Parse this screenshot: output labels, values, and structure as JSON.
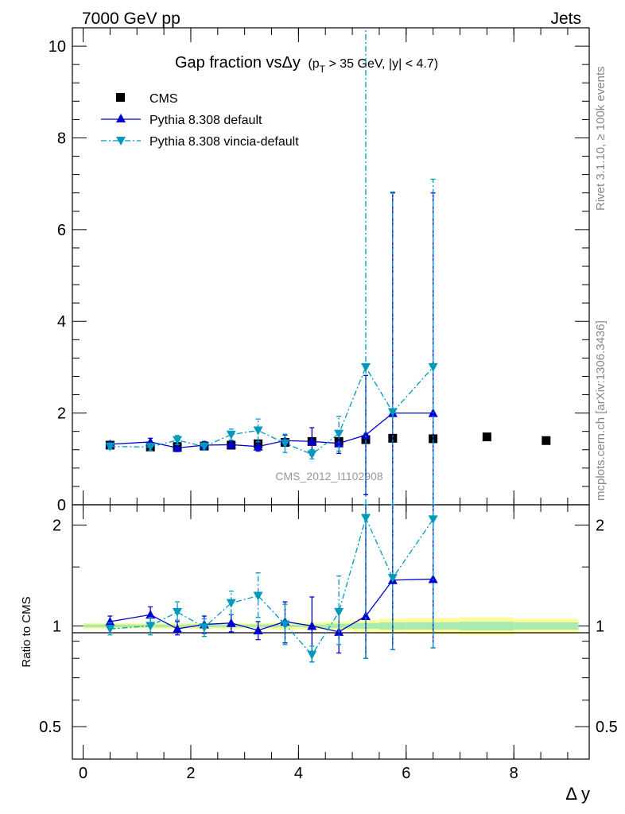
{
  "header": {
    "left": "7000 GeV pp",
    "right": "Jets"
  },
  "side": {
    "top": "Rivet 3.1.10, ≥ 100k events",
    "bottom": "mcplots.cern.ch [arXiv:1306.3436]"
  },
  "colors": {
    "cms": "#000000",
    "default": "#0000cc",
    "vincia": "#0099bb",
    "band_inner": "#a8eab0",
    "band_outer": "#ffff99",
    "ref_line": "#000000"
  },
  "chart_data": [
    {
      "type": "scatter",
      "title_main": "Gap fraction vsΔy",
      "title_sub": "(p",
      "title_sub_sub": "T",
      "title_sub_rest": " > 35 GeV, |y| < 4.7)",
      "watermark": "CMS_2012_I1102908",
      "xlim": [
        -0.2,
        9.4
      ],
      "ylim": [
        0,
        10.4
      ],
      "yticks": [
        0,
        2,
        4,
        6,
        8,
        10
      ],
      "ytick_labels": [
        "0",
        "2",
        "4",
        "6",
        "8",
        "10"
      ],
      "legend": [
        "CMS",
        "Pythia 8.308 default",
        "Pythia 8.308 vincia-default"
      ],
      "legend_position": "top-left",
      "series": [
        {
          "name": "CMS",
          "marker": "square",
          "x": [
            0.5,
            1.25,
            1.75,
            2.25,
            2.75,
            3.25,
            3.75,
            4.25,
            4.75,
            5.25,
            5.75,
            6.5,
            7.5,
            8.6
          ],
          "y": [
            1.3,
            1.26,
            1.27,
            1.28,
            1.3,
            1.33,
            1.36,
            1.38,
            1.38,
            1.42,
            1.45,
            1.44,
            1.48,
            1.4
          ]
        },
        {
          "name": "Pythia 8.308 default",
          "marker": "triangle-up",
          "x": [
            0.5,
            1.25,
            1.75,
            2.25,
            2.75,
            3.25,
            3.75,
            4.25,
            4.75,
            5.25,
            5.75,
            6.5
          ],
          "y": [
            1.32,
            1.37,
            1.24,
            1.3,
            1.31,
            1.27,
            1.4,
            1.38,
            1.34,
            1.52,
            2.0,
            2.0
          ],
          "err": [
            0.05,
            0.08,
            0.08,
            0.08,
            0.08,
            0.1,
            0.12,
            0.3,
            0.22,
            1.3,
            4.8,
            4.8
          ]
        },
        {
          "name": "Pythia 8.308 vincia-default",
          "marker": "triangle-down",
          "x": [
            0.5,
            1.25,
            1.75,
            2.25,
            2.75,
            3.25,
            3.75,
            4.25,
            4.75,
            5.25,
            5.75,
            6.5
          ],
          "y": [
            1.27,
            1.26,
            1.41,
            1.27,
            1.53,
            1.62,
            1.34,
            1.1,
            1.55,
            3.0,
            2.02,
            3.0
          ],
          "err": [
            0.05,
            0.08,
            0.1,
            0.08,
            0.12,
            0.25,
            0.2,
            0.1,
            0.38,
            8.0,
            4.8,
            4.1
          ]
        }
      ]
    },
    {
      "type": "scatter",
      "xlabel": "Δ y",
      "ylabel": "Ratio to CMS",
      "xlim": [
        -0.2,
        9.4
      ],
      "ylim": [
        0.4,
        2.3
      ],
      "xticks": [
        0,
        2,
        4,
        6,
        8
      ],
      "xtick_labels": [
        "0",
        "2",
        "4",
        "6",
        "8"
      ],
      "yticks": [
        0.5,
        1,
        2
      ],
      "ytick_labels": [
        "0.5",
        "1",
        "2"
      ],
      "band": {
        "x_edges": [
          0,
          1,
          1.5,
          2,
          2.5,
          3,
          3.5,
          4,
          4.5,
          5,
          5.5,
          6,
          7,
          8,
          9.2
        ],
        "inner": [
          0.01,
          0.01,
          0.01,
          0.01,
          0.01,
          0.01,
          0.01,
          0.01,
          0.015,
          0.02,
          0.025,
          0.025,
          0.03,
          0.025
        ],
        "outer": [
          0.02,
          0.02,
          0.02,
          0.02,
          0.02,
          0.02,
          0.025,
          0.025,
          0.03,
          0.04,
          0.05,
          0.055,
          0.06,
          0.05
        ]
      },
      "series": [
        {
          "name": "Pythia 8.308 default",
          "marker": "triangle-up",
          "x": [
            0.5,
            1.25,
            1.75,
            2.25,
            2.75,
            3.25,
            3.75,
            4.25,
            4.75,
            5.25,
            5.75,
            6.5
          ],
          "y": [
            1.03,
            1.08,
            0.98,
            1.01,
            1.02,
            0.97,
            1.03,
            1.0,
            0.96,
            1.07,
            1.37,
            1.38
          ],
          "lo": [
            0.99,
            1.02,
            0.94,
            0.95,
            0.96,
            0.91,
            0.89,
            0.78,
            0.83,
            0.8,
            0.85,
            0.86
          ],
          "hi": [
            1.07,
            1.14,
            1.03,
            1.07,
            1.08,
            1.03,
            1.18,
            1.22,
            1.1,
            2.4,
            2.4,
            2.4
          ]
        },
        {
          "name": "Pythia 8.308 vincia-default",
          "marker": "triangle-down",
          "x": [
            0.5,
            1.25,
            1.75,
            2.25,
            2.75,
            3.25,
            3.75,
            4.25,
            4.75,
            5.25,
            5.75,
            6.5
          ],
          "y": [
            0.98,
            1.0,
            1.1,
            0.99,
            1.17,
            1.23,
            1.01,
            0.82,
            1.1,
            2.1,
            1.39,
            2.08
          ],
          "lo": [
            0.94,
            0.94,
            1.04,
            0.93,
            1.08,
            1.06,
            0.88,
            0.78,
            0.88,
            0.8,
            0.85,
            0.86
          ],
          "hi": [
            1.02,
            1.06,
            1.18,
            1.05,
            1.27,
            1.44,
            1.16,
            0.87,
            1.41,
            2.4,
            2.4,
            2.4
          ]
        }
      ]
    }
  ]
}
